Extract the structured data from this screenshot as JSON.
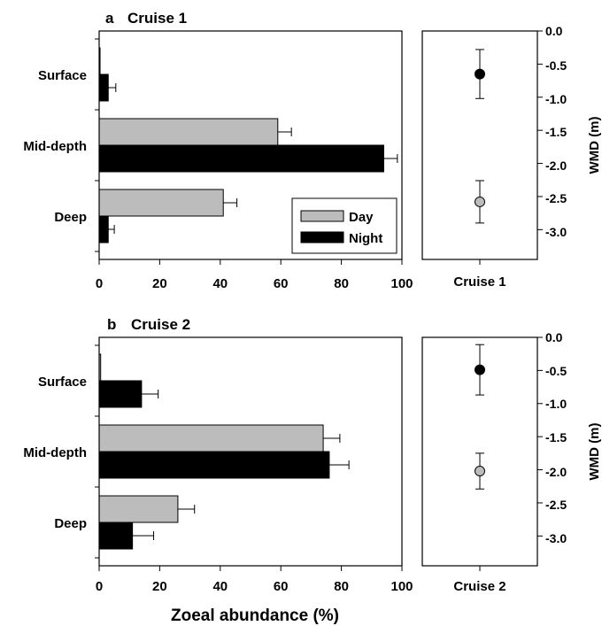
{
  "chart_data": [
    {
      "type": "bar",
      "orientation": "horizontal",
      "panel_letter": "a",
      "title": "Cruise 1",
      "categories": [
        "Surface",
        "Mid-depth",
        "Deep"
      ],
      "series": [
        {
          "name": "Day",
          "color": "#bcbcbc",
          "values": [
            0.3,
            59,
            41
          ],
          "errors": [
            0,
            4.5,
            4.5
          ]
        },
        {
          "name": "Night",
          "color": "#000000",
          "values": [
            3,
            94,
            3
          ],
          "errors": [
            2.5,
            4.5,
            2
          ]
        }
      ],
      "xlim": [
        0,
        100
      ],
      "xticks": [
        "0",
        "20",
        "40",
        "60",
        "80",
        "100"
      ],
      "grid": false,
      "legend": {
        "position": "bottom-right",
        "entries": [
          "Day",
          "Night"
        ]
      },
      "wmd": {
        "category": "Cruise 1",
        "ylabel": "WMD (m)",
        "ylim": [
          -3.45,
          0
        ],
        "yticks": [
          "0.0",
          "-0.5",
          "-1.0",
          "-1.5",
          "-2.0",
          "-2.5",
          "-3.0"
        ],
        "points": [
          {
            "series": "Night",
            "color": "#000000",
            "y": -0.65,
            "err": 0.37
          },
          {
            "series": "Day",
            "color": "#bcbcbc",
            "y": -2.58,
            "err": 0.32
          }
        ]
      }
    },
    {
      "type": "bar",
      "orientation": "horizontal",
      "panel_letter": "b",
      "title": "Cruise 2",
      "categories": [
        "Surface",
        "Mid-depth",
        "Deep"
      ],
      "series": [
        {
          "name": "Day",
          "color": "#bcbcbc",
          "values": [
            0.5,
            74,
            26
          ],
          "errors": [
            0,
            5.5,
            5.5
          ]
        },
        {
          "name": "Night",
          "color": "#000000",
          "values": [
            14,
            76,
            11
          ],
          "errors": [
            5.5,
            6.5,
            7
          ]
        }
      ],
      "xlim": [
        0,
        100
      ],
      "xticks": [
        "0",
        "20",
        "40",
        "60",
        "80",
        "100"
      ],
      "grid": false,
      "xlabel": "Zoeal abundance (%)",
      "wmd": {
        "category": "Cruise 2",
        "ylabel": "WMD (m)",
        "ylim": [
          -3.45,
          0
        ],
        "yticks": [
          "0.0",
          "-0.5",
          "-1.0",
          "-1.5",
          "-2.0",
          "-2.5",
          "-3.0"
        ],
        "points": [
          {
            "series": "Night",
            "color": "#000000",
            "y": -0.49,
            "err": 0.38
          },
          {
            "series": "Day",
            "color": "#bcbcbc",
            "y": -2.02,
            "err": 0.27
          }
        ]
      }
    }
  ]
}
